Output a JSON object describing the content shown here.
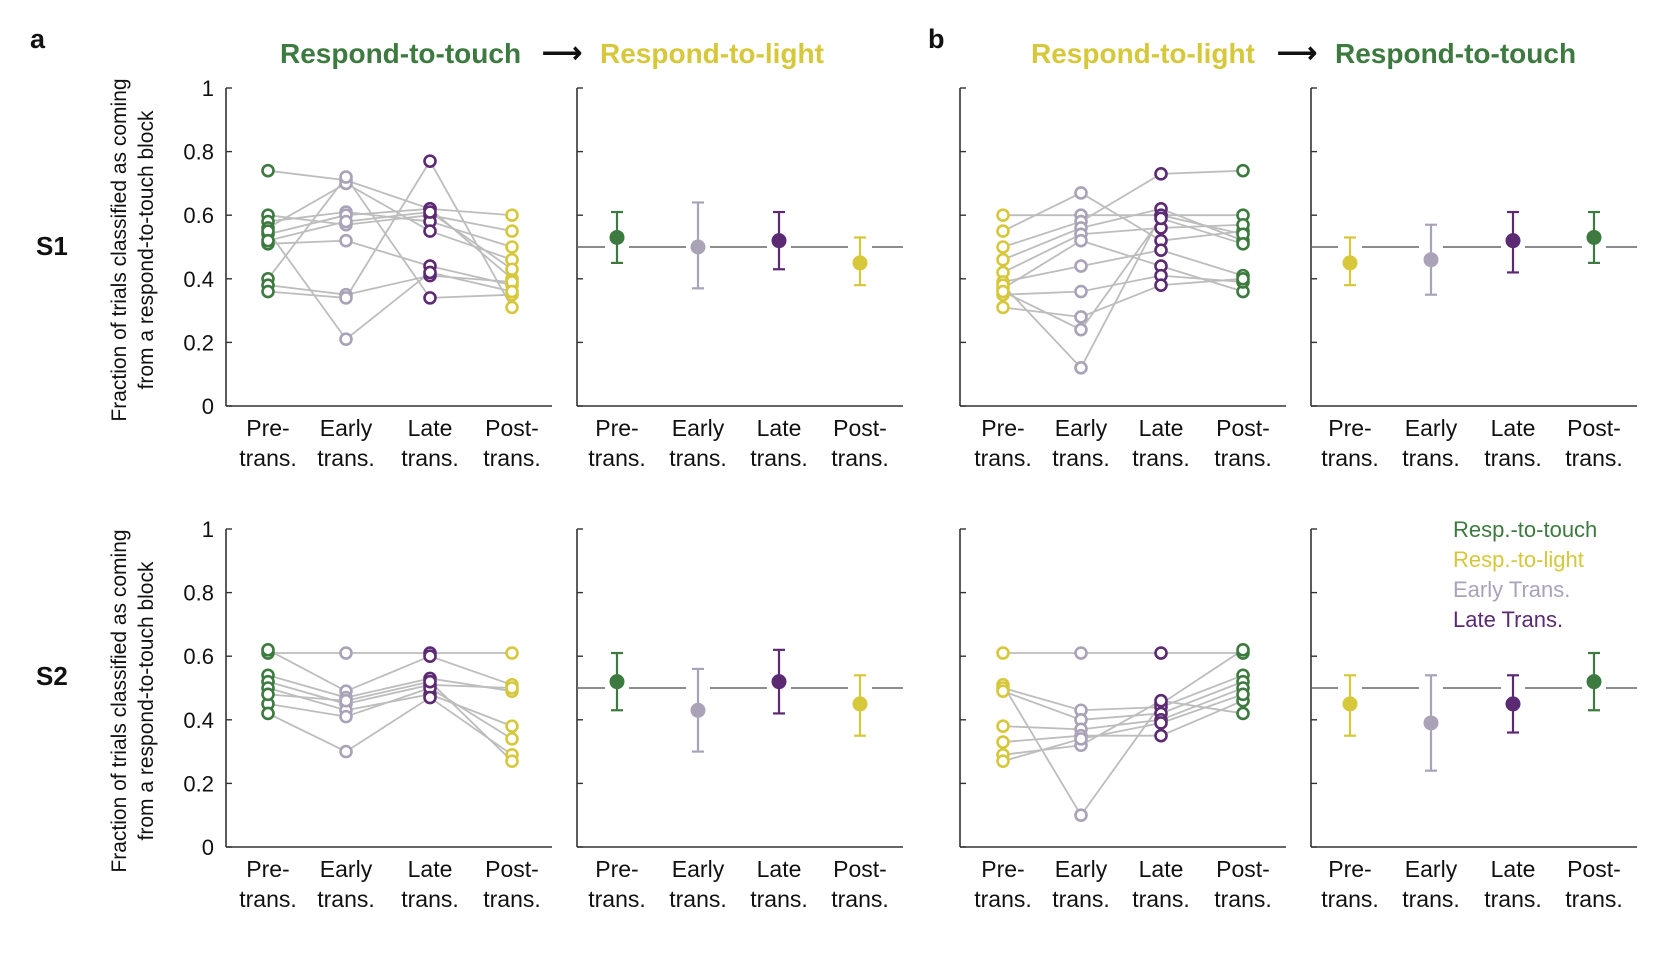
{
  "figure": {
    "panel_letters": [
      "a",
      "b"
    ],
    "row_labels": [
      "S1",
      "S2"
    ],
    "headers": {
      "a": {
        "from": "Respond-to-touch",
        "to": "Respond-to-light",
        "arrow": "⟶"
      },
      "b": {
        "from": "Respond-to-light",
        "to": "Respond-to-touch",
        "arrow": "⟶"
      }
    },
    "ylabel_line1": "Fraction of trials classified as coming",
    "ylabel_line2": "from a respond-to-touch block",
    "legend": [
      {
        "label": "Resp.-to-touch",
        "color": "#3d7a3f"
      },
      {
        "label": "Resp.-to-light",
        "color": "#d6c83a"
      },
      {
        "label": "Early Trans.",
        "color": "#aaa3b8"
      },
      {
        "label": "Late Trans.",
        "color": "#5b2a73"
      }
    ]
  },
  "colors": {
    "touch": "#3d7a3f",
    "light": "#d6c83a",
    "early": "#aaa3b8",
    "late": "#5b2a73",
    "connector": "#bdbdbd",
    "axis": "#333333",
    "reference": "#666666"
  },
  "chart_data": [
    {
      "id": "a-S1-individual",
      "type": "scatter",
      "categories": [
        [
          "Pre-",
          "trans."
        ],
        [
          "Early",
          "trans."
        ],
        [
          "Late",
          "trans."
        ],
        [
          "Post-",
          "trans."
        ]
      ],
      "category_colors": [
        "touch",
        "early",
        "late",
        "light"
      ],
      "ylim": [
        0,
        1
      ],
      "yticks": [
        "0",
        "0.2",
        "0.4",
        "0.6",
        "0.8",
        "1"
      ],
      "lines": [
        [
          0.74,
          0.71,
          0.62,
          0.6
        ],
        [
          0.6,
          0.57,
          0.6,
          0.55
        ],
        [
          0.58,
          0.61,
          0.58,
          0.5
        ],
        [
          0.56,
          0.7,
          0.55,
          0.46
        ],
        [
          0.54,
          0.6,
          0.62,
          0.4
        ],
        [
          0.51,
          0.52,
          0.44,
          0.38
        ],
        [
          0.4,
          0.72,
          0.34,
          0.35
        ],
        [
          0.38,
          0.35,
          0.41,
          0.39
        ],
        [
          0.36,
          0.34,
          0.77,
          0.31
        ],
        [
          0.55,
          0.21,
          0.42,
          0.36
        ],
        [
          0.52,
          0.58,
          0.61,
          0.43
        ]
      ]
    },
    {
      "id": "a-S1-summary",
      "type": "errorbar",
      "categories": [
        [
          "Pre-",
          "trans."
        ],
        [
          "Early",
          "trans."
        ],
        [
          "Late",
          "trans."
        ],
        [
          "Post-",
          "trans."
        ]
      ],
      "category_colors": [
        "touch",
        "early",
        "late",
        "light"
      ],
      "ylim": [
        0,
        1
      ],
      "reference_line": 0.5,
      "mean": [
        0.53,
        0.5,
        0.52,
        0.45
      ],
      "lower": [
        0.45,
        0.37,
        0.43,
        0.38
      ],
      "upper": [
        0.61,
        0.64,
        0.61,
        0.53
      ]
    },
    {
      "id": "b-S1-individual",
      "type": "scatter",
      "categories": [
        [
          "Pre-",
          "trans."
        ],
        [
          "Early",
          "trans."
        ],
        [
          "Late",
          "trans."
        ],
        [
          "Post-",
          "trans."
        ]
      ],
      "category_colors": [
        "light",
        "early",
        "late",
        "touch"
      ],
      "ylim": [
        0,
        1
      ],
      "lines": [
        [
          0.6,
          0.6,
          0.6,
          0.6
        ],
        [
          0.55,
          0.67,
          0.52,
          0.55
        ],
        [
          0.5,
          0.58,
          0.73,
          0.74
        ],
        [
          0.46,
          0.56,
          0.62,
          0.52
        ],
        [
          0.42,
          0.54,
          0.56,
          0.57
        ],
        [
          0.39,
          0.44,
          0.49,
          0.41
        ],
        [
          0.37,
          0.52,
          0.44,
          0.36
        ],
        [
          0.35,
          0.36,
          0.41,
          0.39
        ],
        [
          0.31,
          0.28,
          0.38,
          0.4
        ],
        [
          0.38,
          0.12,
          0.6,
          0.54
        ],
        [
          0.36,
          0.24,
          0.59,
          0.51
        ]
      ]
    },
    {
      "id": "b-S1-summary",
      "type": "errorbar",
      "categories": [
        [
          "Pre-",
          "trans."
        ],
        [
          "Early",
          "trans."
        ],
        [
          "Late",
          "trans."
        ],
        [
          "Post-",
          "trans."
        ]
      ],
      "category_colors": [
        "light",
        "early",
        "late",
        "touch"
      ],
      "ylim": [
        0,
        1
      ],
      "reference_line": 0.5,
      "mean": [
        0.45,
        0.46,
        0.52,
        0.53
      ],
      "lower": [
        0.38,
        0.35,
        0.42,
        0.45
      ],
      "upper": [
        0.53,
        0.57,
        0.61,
        0.61
      ]
    },
    {
      "id": "a-S2-individual",
      "type": "scatter",
      "categories": [
        [
          "Pre-",
          "trans."
        ],
        [
          "Early",
          "trans."
        ],
        [
          "Late",
          "trans."
        ],
        [
          "Post-",
          "trans."
        ]
      ],
      "category_colors": [
        "touch",
        "early",
        "late",
        "light"
      ],
      "ylim": [
        0,
        1
      ],
      "yticks": [
        "0",
        "0.2",
        "0.4",
        "0.6",
        "0.8",
        "1"
      ],
      "lines": [
        [
          0.61,
          0.61,
          0.61,
          0.61
        ],
        [
          0.62,
          0.49,
          0.6,
          0.51
        ],
        [
          0.54,
          0.47,
          0.53,
          0.49
        ],
        [
          0.52,
          0.45,
          0.51,
          0.5
        ],
        [
          0.5,
          0.43,
          0.48,
          0.38
        ],
        [
          0.45,
          0.41,
          0.5,
          0.34
        ],
        [
          0.42,
          0.3,
          0.47,
          0.29
        ],
        [
          0.48,
          0.46,
          0.52,
          0.27
        ]
      ]
    },
    {
      "id": "a-S2-summary",
      "type": "errorbar",
      "categories": [
        [
          "Pre-",
          "trans."
        ],
        [
          "Early",
          "trans."
        ],
        [
          "Late",
          "trans."
        ],
        [
          "Post-",
          "trans."
        ]
      ],
      "category_colors": [
        "touch",
        "early",
        "late",
        "light"
      ],
      "ylim": [
        0,
        1
      ],
      "reference_line": 0.5,
      "mean": [
        0.52,
        0.43,
        0.52,
        0.45
      ],
      "lower": [
        0.43,
        0.3,
        0.42,
        0.35
      ],
      "upper": [
        0.61,
        0.56,
        0.62,
        0.54
      ]
    },
    {
      "id": "b-S2-individual",
      "type": "scatter",
      "categories": [
        [
          "Pre-",
          "trans."
        ],
        [
          "Early",
          "trans."
        ],
        [
          "Late",
          "trans."
        ],
        [
          "Post-",
          "trans."
        ]
      ],
      "category_colors": [
        "light",
        "early",
        "late",
        "touch"
      ],
      "ylim": [
        0,
        1
      ],
      "lines": [
        [
          0.61,
          0.61,
          0.61,
          0.61
        ],
        [
          0.51,
          0.1,
          0.45,
          0.62
        ],
        [
          0.5,
          0.43,
          0.44,
          0.54
        ],
        [
          0.49,
          0.4,
          0.42,
          0.52
        ],
        [
          0.38,
          0.37,
          0.4,
          0.5
        ],
        [
          0.33,
          0.35,
          0.35,
          0.46
        ],
        [
          0.29,
          0.32,
          0.46,
          0.42
        ],
        [
          0.27,
          0.34,
          0.39,
          0.48
        ]
      ]
    },
    {
      "id": "b-S2-summary",
      "type": "errorbar",
      "categories": [
        [
          "Pre-",
          "trans."
        ],
        [
          "Early",
          "trans."
        ],
        [
          "Late",
          "trans."
        ],
        [
          "Post-",
          "trans."
        ]
      ],
      "category_colors": [
        "light",
        "early",
        "late",
        "touch"
      ],
      "ylim": [
        0,
        1
      ],
      "reference_line": 0.5,
      "mean": [
        0.45,
        0.39,
        0.45,
        0.52
      ],
      "lower": [
        0.35,
        0.24,
        0.36,
        0.43
      ],
      "upper": [
        0.54,
        0.54,
        0.54,
        0.61
      ]
    }
  ]
}
